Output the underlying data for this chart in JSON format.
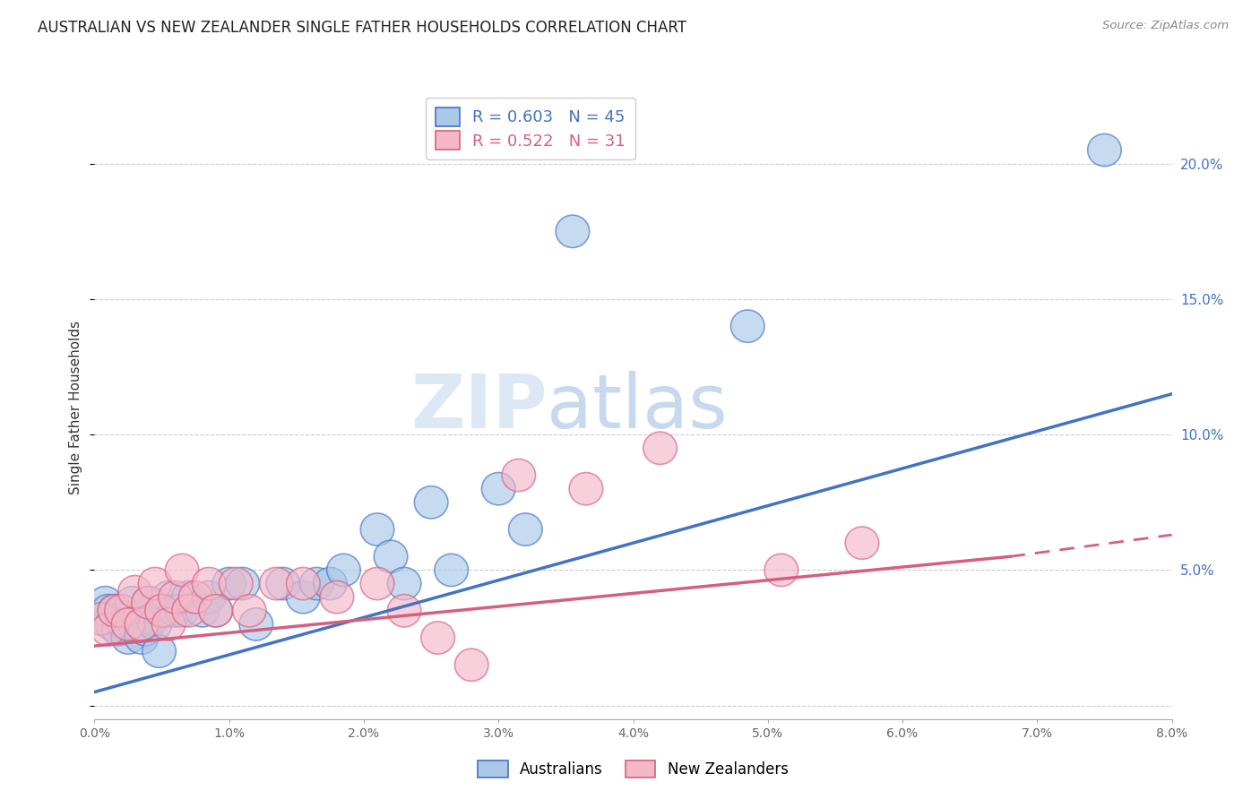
{
  "title": "AUSTRALIAN VS NEW ZEALANDER SINGLE FATHER HOUSEHOLDS CORRELATION CHART",
  "source": "Source: ZipAtlas.com",
  "ylabel": "Single Father Households",
  "xlim": [
    0.0,
    8.0
  ],
  "ylim": [
    -0.5,
    22.5
  ],
  "yticks": [
    0.0,
    5.0,
    10.0,
    15.0,
    20.0
  ],
  "ytick_labels": [
    "",
    "5.0%",
    "10.0%",
    "15.0%",
    "20.0%"
  ],
  "xticks": [
    0.0,
    1.0,
    2.0,
    3.0,
    4.0,
    5.0,
    6.0,
    7.0,
    8.0
  ],
  "legend_blue_r": "0.603",
  "legend_blue_n": "45",
  "legend_pink_r": "0.522",
  "legend_pink_n": "31",
  "color_blue_fill": "#aac8e8",
  "color_blue_edge": "#4472c4",
  "color_blue_line": "#4472c4",
  "color_pink_fill": "#f4b8c8",
  "color_pink_edge": "#d46080",
  "color_pink_line": "#d46080",
  "background_color": "#ffffff",
  "grid_color": "#cccccc",
  "title_color": "#222222",
  "right_label_color": "#4472c4",
  "aus_x": [
    0.05,
    0.08,
    0.1,
    0.13,
    0.15,
    0.18,
    0.2,
    0.22,
    0.25,
    0.28,
    0.3,
    0.33,
    0.35,
    0.38,
    0.4,
    0.43,
    0.45,
    0.48,
    0.5,
    0.53,
    0.55,
    0.6,
    0.65,
    0.7,
    0.8,
    0.85,
    0.9,
    1.0,
    1.1,
    1.2,
    1.4,
    1.55,
    1.65,
    1.75,
    1.85,
    2.1,
    2.2,
    2.3,
    2.5,
    2.65,
    3.0,
    3.2,
    3.55,
    4.85,
    7.5
  ],
  "aus_y": [
    3.2,
    3.8,
    3.5,
    3.0,
    3.5,
    2.8,
    3.2,
    3.0,
    2.5,
    3.8,
    3.0,
    3.2,
    2.5,
    2.8,
    3.8,
    3.2,
    3.0,
    2.0,
    3.5,
    3.5,
    4.0,
    3.5,
    3.5,
    4.0,
    3.5,
    4.0,
    3.5,
    4.5,
    4.5,
    3.0,
    4.5,
    4.0,
    4.5,
    4.5,
    5.0,
    6.5,
    5.5,
    4.5,
    7.5,
    5.0,
    8.0,
    6.5,
    17.5,
    14.0,
    20.5
  ],
  "nz_x": [
    0.05,
    0.1,
    0.15,
    0.2,
    0.25,
    0.3,
    0.35,
    0.4,
    0.45,
    0.5,
    0.55,
    0.6,
    0.65,
    0.7,
    0.75,
    0.85,
    0.9,
    1.05,
    1.15,
    1.35,
    1.55,
    1.8,
    2.1,
    2.3,
    2.55,
    2.8,
    3.15,
    3.65,
    4.2,
    5.1,
    5.7
  ],
  "nz_y": [
    3.2,
    2.8,
    3.5,
    3.5,
    3.0,
    4.2,
    3.0,
    3.8,
    4.5,
    3.5,
    3.0,
    4.0,
    5.0,
    3.5,
    4.0,
    4.5,
    3.5,
    4.5,
    3.5,
    4.5,
    4.5,
    4.0,
    4.5,
    3.5,
    2.5,
    1.5,
    8.5,
    8.0,
    9.5,
    5.0,
    6.0
  ],
  "aus_line_x0": 0.0,
  "aus_line_y0": 0.5,
  "aus_line_x1": 8.0,
  "aus_line_y1": 11.5,
  "nz_line_x0": 0.0,
  "nz_line_y0": 2.2,
  "nz_line_x1": 6.8,
  "nz_line_y1": 5.5,
  "nz_dash_x0": 6.8,
  "nz_dash_y0": 5.5,
  "nz_dash_x1": 8.0,
  "nz_dash_y1": 6.3
}
